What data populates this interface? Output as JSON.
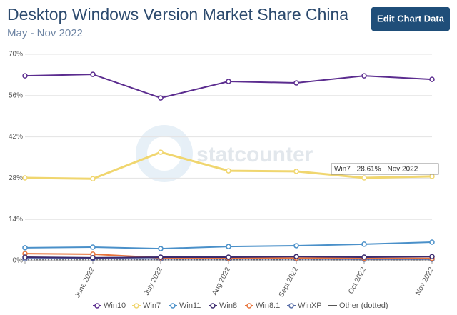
{
  "header": {
    "title": "Desktop Windows Version Market Share China",
    "subtitle": "May - Nov 2022",
    "button": "Edit Chart Data"
  },
  "chart_data": {
    "type": "line",
    "categories": [
      null,
      "June 2022",
      "July 2022",
      "Aug 2022",
      "Sept 2022",
      "Oct 2022",
      "Nov 2022"
    ],
    "series": [
      {
        "name": "Win10",
        "color": "#5b2c8f",
        "values": [
          62.7,
          63.2,
          55.2,
          60.8,
          60.3,
          62.7,
          61.5
        ]
      },
      {
        "name": "Win7",
        "color": "#f0d66f",
        "values": [
          28.1,
          27.8,
          36.8,
          30.5,
          30.3,
          28.1,
          28.61
        ]
      },
      {
        "name": "Win11",
        "color": "#4a90c9",
        "values": [
          4.4,
          4.6,
          4.1,
          4.8,
          5.1,
          5.6,
          6.3
        ]
      },
      {
        "name": "Win8",
        "color": "#3a2a6e",
        "values": [
          1.2,
          1.0,
          1.2,
          1.2,
          1.4,
          1.2,
          1.4
        ]
      },
      {
        "name": "Win8.1",
        "color": "#e8743b",
        "values": [
          2.4,
          2.2,
          1.0,
          0.9,
          0.9,
          0.8,
          0.8
        ]
      },
      {
        "name": "WinXP",
        "color": "#5a6fa8",
        "values": [
          0.7,
          0.7,
          0.6,
          0.6,
          0.6,
          0.5,
          0.5
        ]
      },
      {
        "name": "Other (dotted)",
        "color": "#555555",
        "style": "dotted",
        "values": [
          0.3,
          0.3,
          0.3,
          0.3,
          0.3,
          0.3,
          0.3
        ]
      }
    ],
    "ylim": [
      0,
      70
    ],
    "yticks": [
      {
        "value": 0,
        "label": "0%"
      },
      {
        "value": 14,
        "label": "14%"
      },
      {
        "value": 28,
        "label": "28%"
      },
      {
        "value": 42,
        "label": "42%"
      },
      {
        "value": 56,
        "label": "56%"
      },
      {
        "value": 70,
        "label": "70%"
      }
    ],
    "grid": true,
    "legend": "bottom",
    "tooltip": "Win7 - 28.61% - Nov 2022",
    "watermark": "statcounter"
  }
}
